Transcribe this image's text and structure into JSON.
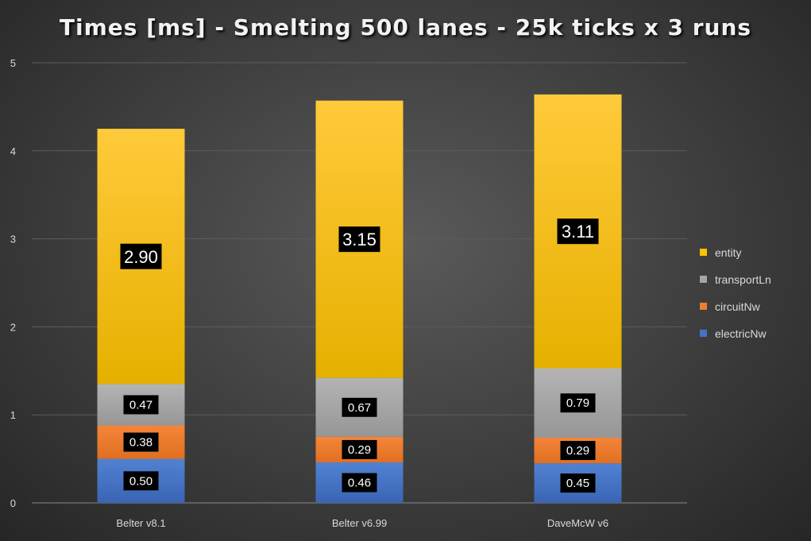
{
  "chart_data": {
    "type": "bar",
    "stacked": true,
    "title": "Times [ms] - Smelting 500 lanes - 25k ticks x 3 runs",
    "xlabel": "",
    "ylabel": "",
    "ylim": [
      0,
      5
    ],
    "yticks": [
      "0",
      "1",
      "2",
      "3",
      "4",
      "5"
    ],
    "grid": true,
    "legend_position": "right",
    "categories": [
      "Belter v8.1",
      "Belter v6.99",
      "DaveMcW v6"
    ],
    "series": [
      {
        "name": "electricNw",
        "color": "#4472c4",
        "values": [
          0.5,
          0.46,
          0.45
        ],
        "labels": [
          "0.50",
          "0.46",
          "0.45"
        ]
      },
      {
        "name": "circuitNw",
        "color": "#ed7d31",
        "values": [
          0.38,
          0.29,
          0.29
        ],
        "labels": [
          "0.38",
          "0.29",
          "0.29"
        ]
      },
      {
        "name": "transportLn",
        "color": "#a5a5a5",
        "values": [
          0.47,
          0.67,
          0.79
        ],
        "labels": [
          "0.47",
          "0.67",
          "0.79"
        ]
      },
      {
        "name": "entity",
        "color": "#ffc000",
        "values": [
          2.9,
          3.15,
          3.11
        ],
        "labels": [
          "2.90",
          "3.15",
          "3.11"
        ]
      }
    ]
  }
}
